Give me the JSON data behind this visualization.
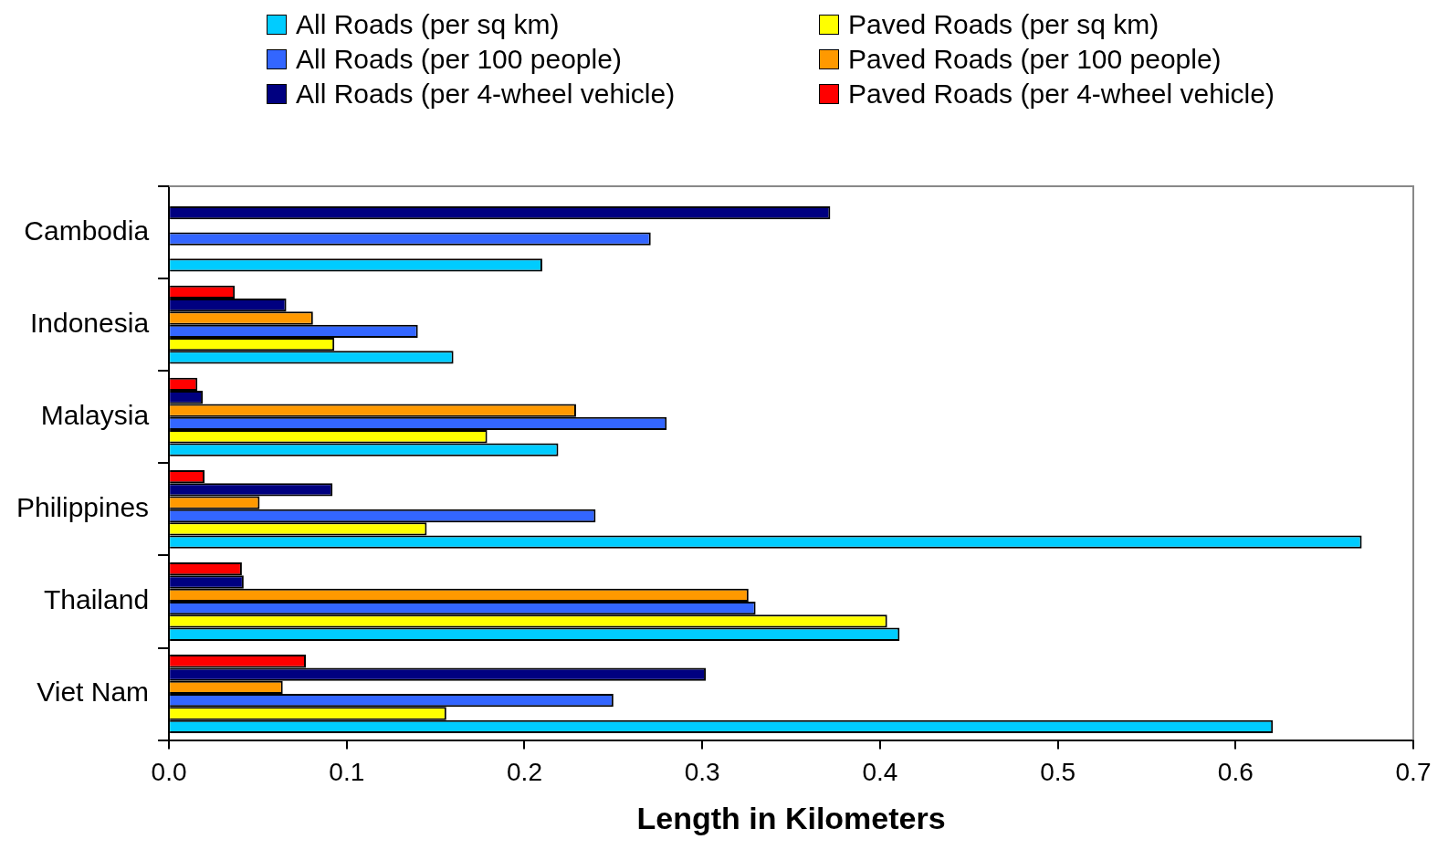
{
  "chart_data": {
    "type": "bar",
    "orientation": "horizontal",
    "xlabel": "Length in Kilometers",
    "categories": [
      "Cambodia",
      "Indonesia",
      "Malaysia",
      "Philippines",
      "Thailand",
      "Viet Nam"
    ],
    "series": [
      {
        "name": "All Roads (per sq km)",
        "color": "#00ccff",
        "values": [
          0.21,
          0.16,
          0.219,
          0.671,
          0.411,
          0.621
        ]
      },
      {
        "name": "Paved Roads (per sq km)",
        "color": "#ffff00",
        "values": [
          null,
          0.093,
          0.179,
          0.145,
          0.404,
          0.156
        ]
      },
      {
        "name": "All Roads (per 100 people)",
        "color": "#3366ff",
        "values": [
          0.271,
          0.14,
          0.28,
          0.24,
          0.33,
          0.25
        ]
      },
      {
        "name": "Paved Roads (per 100 people)",
        "color": "#ff9900",
        "values": [
          null,
          0.081,
          0.229,
          0.051,
          0.326,
          0.064
        ]
      },
      {
        "name": "All Roads (per 4-wheel vehicle)",
        "color": "#000080",
        "values": [
          0.372,
          0.066,
          0.019,
          0.092,
          0.042,
          0.302
        ]
      },
      {
        "name": "Paved Roads (per 4-wheel vehicle)",
        "color": "#ff0000",
        "values": [
          null,
          0.037,
          0.016,
          0.02,
          0.041,
          0.077
        ]
      }
    ],
    "xlim": [
      0,
      0.7
    ],
    "xticks": [
      {
        "value": 0,
        "label": "0.0"
      },
      0.1,
      0.2,
      0.3,
      0.4,
      0.5,
      0.6,
      0.7
    ],
    "grid": false,
    "legend": "top"
  }
}
